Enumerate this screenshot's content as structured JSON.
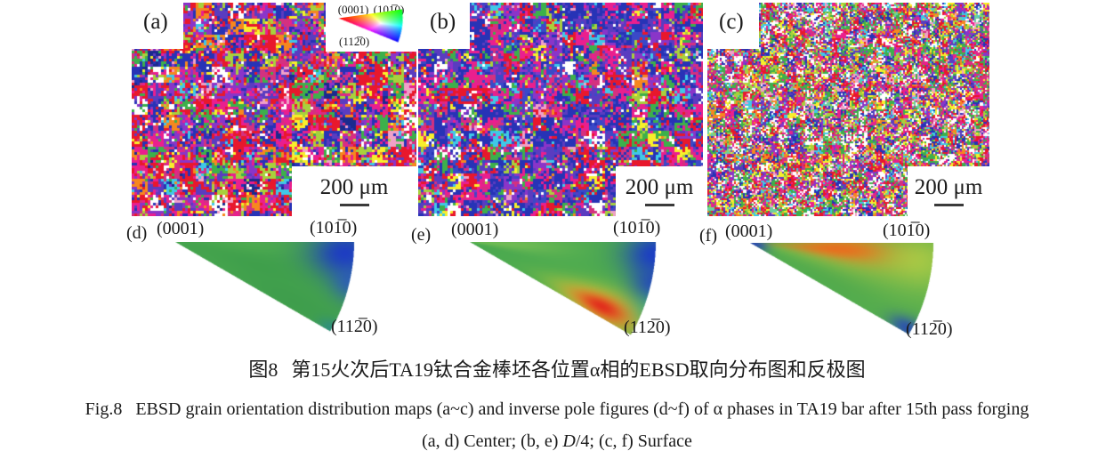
{
  "figure": {
    "panels": [
      {
        "id": "a",
        "label": "(a)",
        "scale_bar": "200 μm"
      },
      {
        "id": "b",
        "label": "(b)",
        "scale_bar": "200 μm"
      },
      {
        "id": "c",
        "label": "(c)",
        "scale_bar": "200 μm"
      }
    ],
    "color_key": {
      "label_0001": "(0001)",
      "label_1010": "(101̅0)",
      "label_1120": "(112̅0)"
    },
    "ipf_panels": [
      {
        "id": "d",
        "label": "(d)",
        "corner_top_left": "(0001)",
        "corner_top_right": "(101̅0)",
        "corner_bottom": "(112̅0)"
      },
      {
        "id": "e",
        "label": "(e)",
        "corner_top_left": "(0001)",
        "corner_top_right": "(101̅0)",
        "corner_bottom": "(112̅0)"
      },
      {
        "id": "f",
        "label": "(f)",
        "corner_top_left": "(0001)",
        "corner_top_right": "(101̅0)",
        "corner_bottom": "(112̅0)"
      }
    ],
    "caption_zh": {
      "prefix": "图8",
      "text": "第15火次后TA19钛合金棒坯各位置α相的EBSD取向分布图和反极图"
    },
    "caption_en": {
      "prefix": "Fig.8",
      "text": "EBSD grain orientation distribution maps (a~c) and inverse pole figures (d~f) of α phases in TA19 bar after 15th pass forging"
    },
    "caption_en2": {
      "pre": "(a, d) Center; (b, e) ",
      "italic": "D",
      "post": "/4; (c, f) Surface"
    }
  },
  "colors": {
    "text": "#1a1a1a",
    "scale_line": "#3a3a3a",
    "background": "#ffffff"
  },
  "render": {
    "maps": [
      {
        "seed": 11,
        "block": 3,
        "cluster": 18,
        "cluster2": 8,
        "p1": 0.45,
        "p2": 0.3,
        "palette": [
          {
            "c": "#e8182c",
            "w": 16
          },
          {
            "c": "#ea1f8e",
            "w": 13
          },
          {
            "c": "#d4317f",
            "w": 6
          },
          {
            "c": "#2733b6",
            "w": 13
          },
          {
            "c": "#5a3cc0",
            "w": 8
          },
          {
            "c": "#8a35c8",
            "w": 7
          },
          {
            "c": "#3db04b",
            "w": 8
          },
          {
            "c": "#a8d13c",
            "w": 6
          },
          {
            "c": "#f8ef2b",
            "w": 5
          },
          {
            "c": "#f6871f",
            "w": 5
          },
          {
            "c": "#3fc8e8",
            "w": 3
          },
          {
            "c": "#ffffff",
            "w": 5
          },
          {
            "c": "#f0a0c8",
            "w": 3
          },
          {
            "c": "#1b2a8e",
            "w": 2
          }
        ]
      },
      {
        "seed": 22,
        "block": 3,
        "cluster": 16,
        "cluster2": 8,
        "p1": 0.45,
        "p2": 0.3,
        "palette": [
          {
            "c": "#2733b6",
            "w": 20
          },
          {
            "c": "#3a49c8",
            "w": 8
          },
          {
            "c": "#5a3cc0",
            "w": 11
          },
          {
            "c": "#8a35c8",
            "w": 6
          },
          {
            "c": "#ea1f8e",
            "w": 12
          },
          {
            "c": "#d4317f",
            "w": 6
          },
          {
            "c": "#e8182c",
            "w": 11
          },
          {
            "c": "#3db04b",
            "w": 7
          },
          {
            "c": "#a8d13c",
            "w": 4
          },
          {
            "c": "#f8ef2b",
            "w": 3
          },
          {
            "c": "#3fc8e8",
            "w": 3
          },
          {
            "c": "#ffffff",
            "w": 6
          },
          {
            "c": "#f0a0c8",
            "w": 2
          },
          {
            "c": "#f6871f",
            "w": 1
          }
        ]
      },
      {
        "seed": 33,
        "block": 2,
        "cluster": 10,
        "cluster2": 5,
        "p1": 0.35,
        "p2": 0.3,
        "palette": [
          {
            "c": "#e8182c",
            "w": 12
          },
          {
            "c": "#ea1f8e",
            "w": 11
          },
          {
            "c": "#d4317f",
            "w": 5
          },
          {
            "c": "#2733b6",
            "w": 8
          },
          {
            "c": "#5a3cc0",
            "w": 6
          },
          {
            "c": "#8a35c8",
            "w": 5
          },
          {
            "c": "#3db04b",
            "w": 12
          },
          {
            "c": "#a8d13c",
            "w": 7
          },
          {
            "c": "#f8ef2b",
            "w": 6
          },
          {
            "c": "#f6871f",
            "w": 5
          },
          {
            "c": "#3fc8e8",
            "w": 5
          },
          {
            "c": "#ffffff",
            "w": 12
          },
          {
            "c": "#f0a0c8",
            "w": 4
          },
          {
            "c": "#6ad0a0",
            "w": 2
          }
        ]
      }
    ],
    "ipf": [
      {
        "R": 201,
        "base": "#45a44d",
        "spots": [
          {
            "a": 4,
            "r": 0.95,
            "sa": 9,
            "sr": 0.2,
            "s": 1.0,
            "c": "#1d3cc2"
          },
          {
            "a": 13,
            "r": 1.0,
            "sa": 6,
            "sr": 0.1,
            "s": 0.7,
            "c": "#2a55c8"
          },
          {
            "a": 2,
            "r": 0.45,
            "sa": 6,
            "sr": 0.25,
            "s": 0.25,
            "c": "#63bd58"
          },
          {
            "a": 16,
            "r": 0.5,
            "sa": 8,
            "sr": 0.28,
            "s": 0.25,
            "c": "#2e9146"
          },
          {
            "a": 27,
            "r": 0.75,
            "sa": 6,
            "sr": 0.3,
            "s": 0.3,
            "c": "#318f4b"
          },
          {
            "a": 29,
            "r": 1.0,
            "sa": 3,
            "sr": 0.08,
            "s": 0.5,
            "c": "#1e7fae"
          }
        ]
      },
      {
        "R": 209,
        "base": "#4aa94f",
        "spots": [
          {
            "a": 3,
            "r": 0.2,
            "sa": 8,
            "sr": 0.35,
            "s": 0.55,
            "c": "#8ecb58"
          },
          {
            "a": 26,
            "r": 0.78,
            "sa": 8,
            "sr": 0.3,
            "s": 0.7,
            "c": "#cfe03c"
          },
          {
            "a": 26,
            "r": 0.78,
            "sa": 5.5,
            "sr": 0.2,
            "s": 0.85,
            "c": "#f2a129"
          },
          {
            "a": 26,
            "r": 0.79,
            "sa": 3.6,
            "sr": 0.13,
            "s": 1.0,
            "c": "#e1301d"
          },
          {
            "a": 4,
            "r": 1.0,
            "sa": 8,
            "sr": 0.17,
            "s": 1.0,
            "c": "#1c3ec3"
          },
          {
            "a": 13,
            "r": 1.02,
            "sa": 6,
            "sr": 0.12,
            "s": 0.85,
            "c": "#2244c0"
          },
          {
            "a": 21,
            "r": 1.05,
            "sa": 5,
            "sr": 0.1,
            "s": 0.4,
            "c": "#2bb5a0"
          }
        ]
      },
      {
        "R": 206,
        "base": "#54ad4e",
        "spots": [
          {
            "a": 8,
            "r": 0.6,
            "sa": 12,
            "sr": 0.5,
            "s": 0.45,
            "c": "#c8d840"
          },
          {
            "a": 4,
            "r": 0.48,
            "sa": 7,
            "sr": 0.3,
            "s": 0.9,
            "c": "#ee7d1f"
          },
          {
            "a": 4,
            "r": 0.48,
            "sa": 4.5,
            "sr": 0.2,
            "s": 0.55,
            "c": "#e8611c"
          },
          {
            "a": 6,
            "r": 0.93,
            "sa": 8,
            "sr": 0.18,
            "s": 0.5,
            "c": "#cada44"
          },
          {
            "a": 15,
            "r": 0.02,
            "sa": 30,
            "sr": 0.075,
            "s": 1.0,
            "c": "#2b49b2"
          },
          {
            "a": 28.5,
            "r": 0.97,
            "sa": 3.5,
            "sr": 0.1,
            "s": 0.85,
            "c": "#2746bb"
          },
          {
            "a": 24,
            "r": 0.5,
            "sa": 8,
            "sr": 0.3,
            "s": 0.2,
            "c": "#3c9a49"
          }
        ]
      }
    ],
    "legend": {
      "R": 72
    }
  }
}
